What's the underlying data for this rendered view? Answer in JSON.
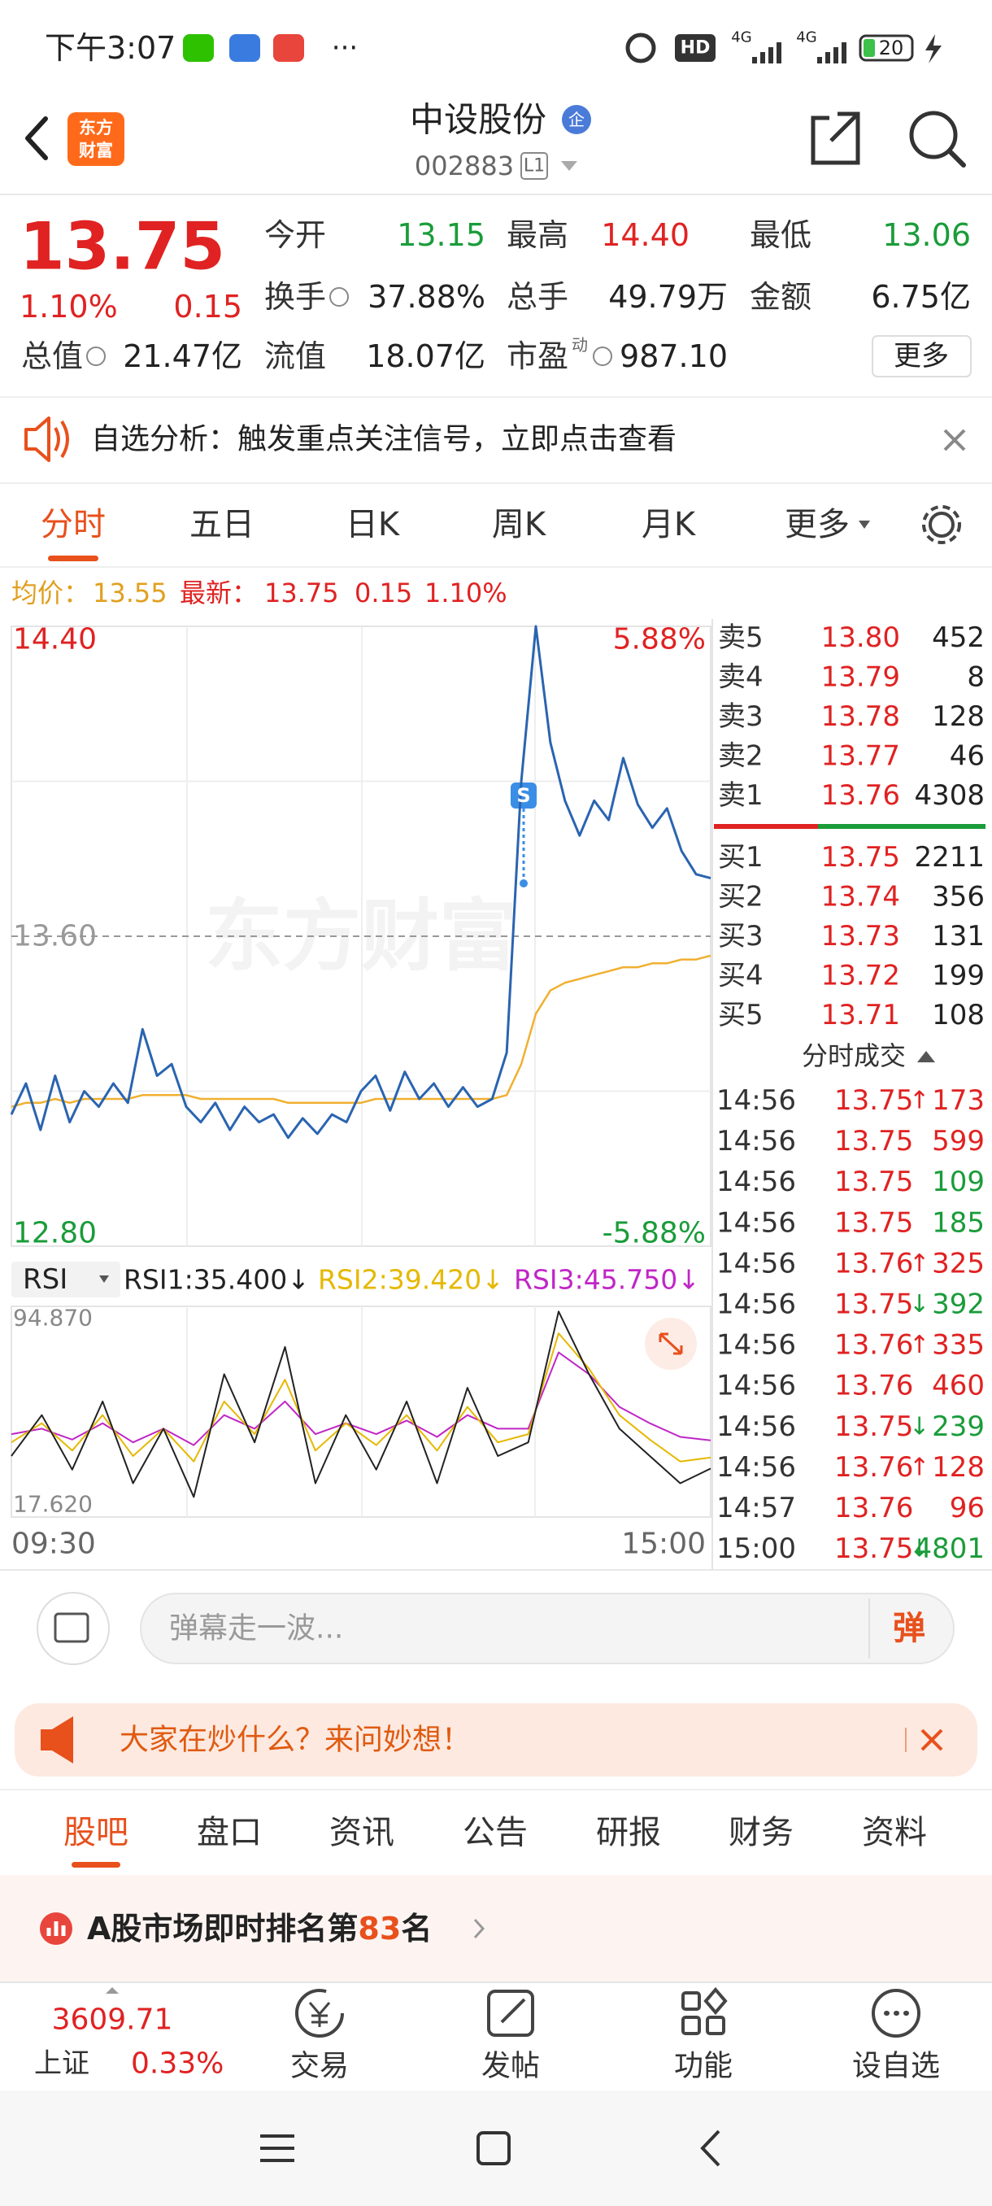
{
  "status_bar": {
    "time": "下午3:07",
    "more": "···",
    "network": [
      "4G",
      "4G"
    ],
    "hd": "HD",
    "battery": "20"
  },
  "header": {
    "logo": [
      "东方",
      "财富"
    ],
    "name": "中设股份",
    "badge": "企",
    "code": "002883",
    "level": "L1"
  },
  "quote": {
    "price": "13.75",
    "change_pct": "1.10%",
    "change": "0.15",
    "more": "更多",
    "fields": [
      {
        "label": "今开",
        "value": "13.15",
        "color": "#1a9c3a"
      },
      {
        "label": "最高",
        "value": "14.40",
        "color": "#e02222"
      },
      {
        "label": "最低",
        "value": "13.06",
        "color": "#1a9c3a"
      },
      {
        "label": "换手",
        "value": "37.88%",
        "color": "#222222"
      },
      {
        "label": "总手",
        "value": "49.79万",
        "color": "#222222"
      },
      {
        "label": "金额",
        "value": "6.75亿",
        "color": "#222222"
      },
      {
        "label": "总值",
        "value": "21.47亿",
        "color": "#222222"
      },
      {
        "label": "流值",
        "value": "18.07亿",
        "color": "#222222"
      },
      {
        "label": "市盈",
        "value": "987.10",
        "color": "#222222",
        "sup": "动"
      }
    ]
  },
  "alert": {
    "text": "自选分析：触发重点关注信号，立即点击查看"
  },
  "chart_tabs": [
    "分时",
    "五日",
    "日K",
    "周K",
    "月K",
    "更多"
  ],
  "info": {
    "avg_label": "均价：",
    "avg": "13.55",
    "last_label": "最新：",
    "last": "13.75",
    "change": "0.15",
    "pct": "1.10%"
  },
  "chart_data": [
    {
      "type": "line",
      "ylim": [
        12.8,
        14.4
      ],
      "yticks": [
        {
          "value": 14.4,
          "label": "14.40"
        },
        {
          "value": 13.6,
          "label": "13.60"
        },
        {
          "value": 12.8,
          "label": "12.80"
        }
      ],
      "ytick_colors": [
        "#e02222",
        "#999999",
        "#1a9c3a"
      ],
      "ygrid": [
        14.0,
        13.2
      ],
      "y2lim": [
        -5.88,
        5.88
      ],
      "y2ticks": [
        {
          "value": 5.88,
          "label": "5.88%"
        },
        {
          "value": -5.88,
          "label": "-5.88%"
        }
      ],
      "y2tick_colors": [
        "#e02222",
        "#1a9c3a"
      ],
      "x_labels": [
        "09:30",
        "15:00"
      ],
      "watermark": "东方财富",
      "signal": "S",
      "series": [
        {
          "color": "#2a64b0",
          "values": [
            13.14,
            13.22,
            13.1,
            13.24,
            13.12,
            13.2,
            13.16,
            13.22,
            13.17,
            13.36,
            13.24,
            13.27,
            13.16,
            13.12,
            13.17,
            13.1,
            13.16,
            13.12,
            13.14,
            13.08,
            13.13,
            13.09,
            13.14,
            13.12,
            13.2,
            13.24,
            13.15,
            13.25,
            13.18,
            13.22,
            13.16,
            13.21,
            13.16,
            13.18,
            13.3,
            14.0,
            14.4,
            14.1,
            13.95,
            13.86,
            13.95,
            13.9,
            14.06,
            13.94,
            13.88,
            13.93,
            13.82,
            13.76,
            13.75
          ]
        },
        {
          "color": "#f0b030",
          "values": [
            13.16,
            13.17,
            13.17,
            13.18,
            13.17,
            13.18,
            13.18,
            13.18,
            13.18,
            13.19,
            13.19,
            13.19,
            13.19,
            13.18,
            13.18,
            13.18,
            13.18,
            13.18,
            13.18,
            13.17,
            13.17,
            13.17,
            13.17,
            13.17,
            13.17,
            13.18,
            13.18,
            13.18,
            13.18,
            13.18,
            13.18,
            13.18,
            13.18,
            13.18,
            13.19,
            13.27,
            13.4,
            13.46,
            13.48,
            13.49,
            13.5,
            13.51,
            13.52,
            13.52,
            13.53,
            13.53,
            13.54,
            13.54,
            13.55
          ]
        }
      ]
    },
    {
      "type": "line",
      "selector": "RSI",
      "ylim": [
        17.62,
        94.87
      ],
      "yticks": [
        {
          "value": 94.87,
          "label": "94.870"
        },
        {
          "value": 17.62,
          "label": "17.620"
        }
      ],
      "series": [
        {
          "legend": "RSI1:35.400↓",
          "color": "#222222",
          "values": [
            40,
            55,
            35,
            60,
            30,
            50,
            25,
            70,
            45,
            80,
            30,
            55,
            35,
            60,
            30,
            65,
            40,
            45,
            93,
            70,
            50,
            40,
            30,
            35.4
          ]
        },
        {
          "legend": "RSI2:39.420↓",
          "color": "#e6b800",
          "values": [
            45,
            52,
            42,
            55,
            40,
            50,
            38,
            60,
            48,
            68,
            42,
            52,
            44,
            55,
            42,
            58,
            45,
            48,
            85,
            72,
            55,
            46,
            38,
            39.42
          ]
        },
        {
          "legend": "RSI3:45.750↓",
          "color": "#c026c6",
          "values": [
            48,
            50,
            46,
            52,
            45,
            50,
            44,
            55,
            50,
            60,
            48,
            52,
            48,
            53,
            47,
            55,
            50,
            50,
            78,
            70,
            58,
            52,
            47,
            45.75
          ]
        }
      ]
    }
  ],
  "order_book": {
    "asks": [
      {
        "label": "卖5",
        "price": "13.80",
        "vol": "452"
      },
      {
        "label": "卖4",
        "price": "13.79",
        "vol": "8"
      },
      {
        "label": "卖3",
        "price": "13.78",
        "vol": "128"
      },
      {
        "label": "卖2",
        "price": "13.77",
        "vol": "46"
      },
      {
        "label": "卖1",
        "price": "13.76",
        "vol": "4308"
      }
    ],
    "bids": [
      {
        "label": "买1",
        "price": "13.75",
        "vol": "2211"
      },
      {
        "label": "买2",
        "price": "13.74",
        "vol": "356"
      },
      {
        "label": "买3",
        "price": "13.73",
        "vol": "131"
      },
      {
        "label": "买4",
        "price": "13.72",
        "vol": "199"
      },
      {
        "label": "买5",
        "price": "13.71",
        "vol": "108"
      }
    ],
    "trades_title": "分时成交",
    "trades": [
      {
        "time": "14:56",
        "price": "13.75",
        "arrow": "↑",
        "vol": "173",
        "color": "#e02222"
      },
      {
        "time": "14:56",
        "price": "13.75",
        "vol": "599",
        "color": "#e02222"
      },
      {
        "time": "14:56",
        "price": "13.75",
        "vol": "109",
        "color": "#1a9c3a"
      },
      {
        "time": "14:56",
        "price": "13.75",
        "vol": "185",
        "color": "#1a9c3a"
      },
      {
        "time": "14:56",
        "price": "13.76",
        "arrow": "↑",
        "vol": "325",
        "color": "#e02222"
      },
      {
        "time": "14:56",
        "price": "13.75",
        "arrow": "↓",
        "vol": "392",
        "color": "#1a9c3a"
      },
      {
        "time": "14:56",
        "price": "13.76",
        "arrow": "↑",
        "vol": "335",
        "color": "#e02222"
      },
      {
        "time": "14:56",
        "price": "13.76",
        "vol": "460",
        "color": "#e02222"
      },
      {
        "time": "14:56",
        "price": "13.75",
        "arrow": "↓",
        "vol": "239",
        "color": "#1a9c3a"
      },
      {
        "time": "14:56",
        "price": "13.76",
        "arrow": "↑",
        "vol": "128",
        "color": "#e02222"
      },
      {
        "time": "14:57",
        "price": "13.76",
        "vol": "96",
        "color": "#e02222"
      },
      {
        "time": "15:00",
        "price": "13.75",
        "arrow": "↓",
        "vol": "4801",
        "color": "#1a9c3a"
      }
    ]
  },
  "danmaku": {
    "placeholder": "弹幕走一波...",
    "button": "弹"
  },
  "banner": {
    "text": "大家在炒什么？来问妙想！"
  },
  "tabs": [
    "股吧",
    "盘口",
    "资讯",
    "公告",
    "研报",
    "财务",
    "资料"
  ],
  "ranking": {
    "prefix": "A股市场即时排名第",
    "rank": "83",
    "suffix": "名"
  },
  "bottom_bar": {
    "index_value": "3609.71",
    "index_name": "上证",
    "index_pct": "0.33%",
    "buttons": [
      "交易",
      "发帖",
      "功能",
      "设自选"
    ]
  }
}
